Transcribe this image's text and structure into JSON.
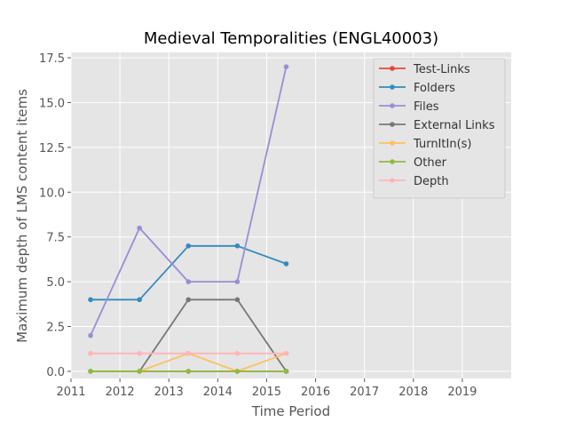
{
  "chart_data": {
    "type": "line",
    "title": "Medieval Temporalities (ENGL40003)",
    "xlabel": "Time Period",
    "ylabel": "Maximum depth of LMS content items",
    "xlim": [
      2011,
      2020
    ],
    "ylim": [
      -0.4,
      17.8
    ],
    "grid": true,
    "legend_position": "top-right",
    "background_color": "#e5e5e5",
    "x_ticks": [
      2011,
      2012,
      2013,
      2014,
      2015,
      2016,
      2017,
      2018,
      2019
    ],
    "x_tick_labels": [
      "2011",
      "2012",
      "2013",
      "2014",
      "2015",
      "2016",
      "2017",
      "2018",
      "2019"
    ],
    "y_ticks": [
      0,
      2.5,
      5,
      7.5,
      10,
      12.5,
      15,
      17.5
    ],
    "y_tick_labels": [
      "0.0",
      "2.5",
      "5.0",
      "7.5",
      "10.0",
      "12.5",
      "15.0",
      "17.5"
    ],
    "x": [
      2011.4,
      2012.4,
      2013.4,
      2014.4,
      2015.4
    ],
    "series": [
      {
        "name": "Test-Links",
        "color": "#e24a33",
        "values": [
          0,
          0,
          0,
          0,
          0
        ]
      },
      {
        "name": "Folders",
        "color": "#348abd",
        "values": [
          4,
          4,
          7,
          7,
          6
        ]
      },
      {
        "name": "Files",
        "color": "#988ed5",
        "values": [
          2,
          8,
          5,
          5,
          17
        ]
      },
      {
        "name": "External Links",
        "color": "#777777",
        "values": [
          0,
          0,
          4,
          4,
          0
        ]
      },
      {
        "name": "TurnItIn(s)",
        "color": "#fbc15e",
        "values": [
          0,
          0,
          1,
          0,
          1
        ]
      },
      {
        "name": "Other",
        "color": "#8eba42",
        "values": [
          0,
          0,
          0,
          0,
          0
        ]
      },
      {
        "name": "Depth",
        "color": "#ffb5b8",
        "values": [
          1,
          1,
          1,
          1,
          1
        ]
      }
    ]
  }
}
